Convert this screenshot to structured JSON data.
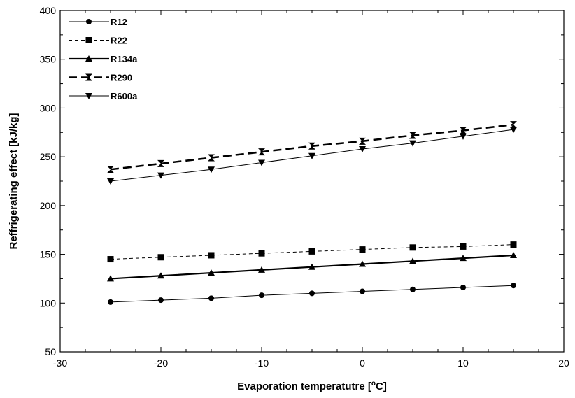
{
  "chart_data": {
    "type": "line",
    "title": "",
    "xlabel": "Evaporation temperatutre [",
    "xlabel_sup": "o",
    "xlabel_suffix": "C]",
    "ylabel": "Reffrigerating effect [kJ/kg]",
    "xlim": [
      -30,
      20
    ],
    "ylim": [
      50,
      400
    ],
    "xticks": [
      -30,
      -20,
      -10,
      0,
      10,
      20
    ],
    "yticks": [
      50,
      100,
      150,
      200,
      250,
      300,
      350,
      400
    ],
    "grid": false,
    "legend_position": "top-left",
    "x": [
      -25,
      -20,
      -15,
      -10,
      -5,
      0,
      5,
      10,
      15
    ],
    "series": [
      {
        "name": "R12",
        "marker": "circle",
        "line": "thin-solid",
        "color": "#000000",
        "values": [
          101,
          103,
          105,
          108,
          110,
          112,
          114,
          116,
          118
        ]
      },
      {
        "name": "R22",
        "marker": "square",
        "line": "thin-dashed",
        "color": "#000000",
        "values": [
          145,
          147,
          149,
          151,
          153,
          155,
          157,
          158,
          160
        ]
      },
      {
        "name": "R134a",
        "marker": "triangle-up",
        "line": "thick-solid",
        "color": "#000000",
        "values": [
          125,
          128,
          131,
          134,
          137,
          140,
          143,
          146,
          149
        ]
      },
      {
        "name": "R290",
        "marker": "hourglass",
        "line": "thick-dashed",
        "color": "#000000",
        "values": [
          237,
          243,
          249,
          255,
          261,
          266,
          272,
          277,
          283
        ]
      },
      {
        "name": "R600a",
        "marker": "triangle-down",
        "line": "thin-solid",
        "color": "#000000",
        "values": [
          225,
          231,
          237,
          244,
          251,
          258,
          264,
          271,
          278
        ]
      }
    ]
  }
}
